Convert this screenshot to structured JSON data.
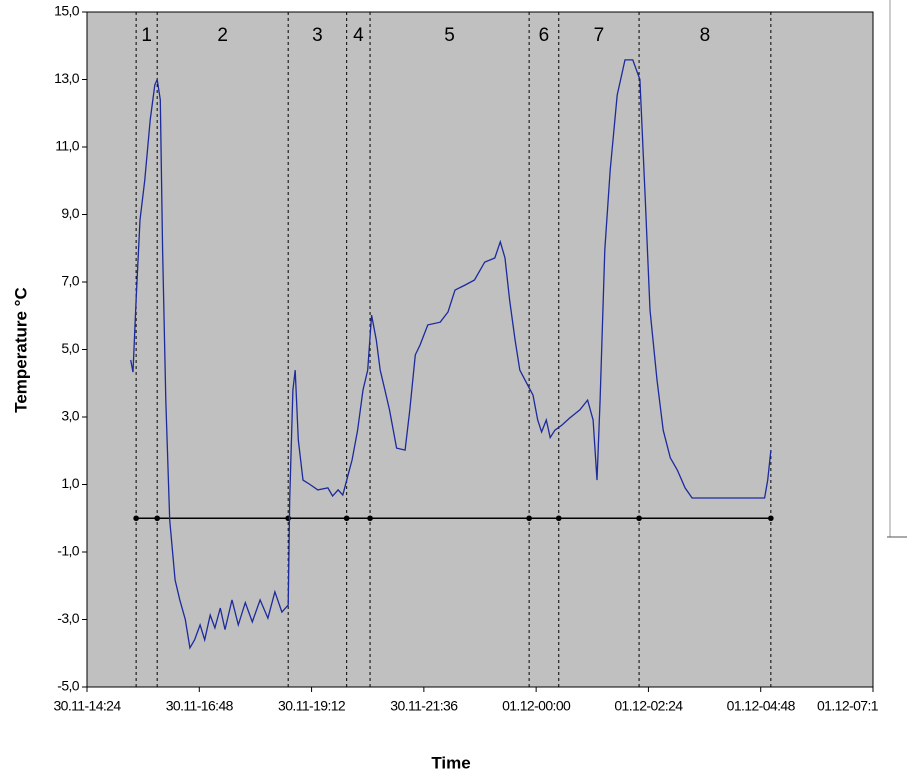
{
  "chart_data": {
    "type": "line",
    "x_label": "Time",
    "y_label": "Temperature °C",
    "xlim": [
      864,
      1872
    ],
    "xticks": [
      {
        "value": 864,
        "label": "30.11-14:24"
      },
      {
        "value": 1008,
        "label": "30.11-16:48"
      },
      {
        "value": 1152,
        "label": "30.11-19:12"
      },
      {
        "value": 1296,
        "label": "30.11-21:36"
      },
      {
        "value": 1440,
        "label": "01.12-00:00"
      },
      {
        "value": 1584,
        "label": "01.12-02:24"
      },
      {
        "value": 1728,
        "label": "01.12-04:48"
      },
      {
        "value": 1872,
        "label": "01.12-07:1"
      }
    ],
    "ylim": [
      -5,
      15
    ],
    "yticks": [
      {
        "value": -5,
        "label": "-5,0"
      },
      {
        "value": -3,
        "label": "-3,0"
      },
      {
        "value": -1,
        "label": "-1,0"
      },
      {
        "value": 1,
        "label": "1,0"
      },
      {
        "value": 3,
        "label": "3,0"
      },
      {
        "value": 5,
        "label": "5,0"
      },
      {
        "value": 7,
        "label": "7,0"
      },
      {
        "value": 9,
        "label": "9,0"
      },
      {
        "value": 11,
        "label": "11,0"
      },
      {
        "value": 13,
        "label": "13,0"
      },
      {
        "value": 15,
        "label": "15,0"
      }
    ],
    "plot_background": "#c0c0c0",
    "reference_line": 0,
    "boundaries": [
      927,
      954,
      1122,
      1197,
      1227,
      1431,
      1469,
      1572,
      1741
    ],
    "segment_labels": [
      "1",
      "2",
      "3",
      "4",
      "5",
      "6",
      "7",
      "8"
    ],
    "x": [
      920,
      923,
      927,
      932,
      938,
      945,
      951,
      954,
      958,
      961,
      965,
      970,
      977,
      983,
      990,
      996,
      1002,
      1009,
      1015,
      1022,
      1028,
      1035,
      1041,
      1050,
      1058,
      1067,
      1076,
      1086,
      1096,
      1105,
      1114,
      1122,
      1124,
      1128,
      1131,
      1135,
      1141,
      1150,
      1160,
      1173,
      1179,
      1186,
      1192,
      1197,
      1204,
      1211,
      1218,
      1224,
      1229,
      1235,
      1240,
      1246,
      1252,
      1261,
      1272,
      1278,
      1285,
      1291,
      1301,
      1317,
      1327,
      1336,
      1349,
      1361,
      1374,
      1387,
      1394,
      1400,
      1406,
      1413,
      1419,
      1429,
      1436,
      1442,
      1447,
      1453,
      1458,
      1464,
      1473,
      1483,
      1496,
      1506,
      1513,
      1518,
      1522,
      1528,
      1535,
      1544,
      1554,
      1564,
      1573,
      1580,
      1586,
      1595,
      1603,
      1612,
      1621,
      1631,
      1640,
      1650,
      1701,
      1733,
      1737,
      1741
    ],
    "series": [
      {
        "color": "#1c2a9c",
        "values": [
          4.69,
          4.33,
          6.47,
          8.84,
          10.0,
          11.8,
          12.84,
          13.0,
          12.4,
          7.95,
          3.5,
          -0.05,
          -1.83,
          -2.42,
          -3.0,
          -3.84,
          -3.6,
          -3.16,
          -3.6,
          -2.87,
          -3.25,
          -2.66,
          -3.3,
          -2.42,
          -3.16,
          -2.5,
          -3.07,
          -2.42,
          -2.96,
          -2.18,
          -2.78,
          -2.57,
          0.54,
          3.8,
          4.39,
          2.32,
          1.13,
          1.0,
          0.84,
          0.9,
          0.66,
          0.84,
          0.69,
          1.13,
          1.73,
          2.61,
          3.8,
          4.39,
          6.02,
          5.28,
          4.39,
          3.8,
          3.21,
          2.08,
          2.02,
          3.21,
          4.84,
          5.13,
          5.73,
          5.81,
          6.11,
          6.76,
          6.91,
          7.06,
          7.59,
          7.71,
          8.19,
          7.71,
          6.47,
          5.28,
          4.39,
          3.95,
          3.65,
          2.91,
          2.56,
          2.91,
          2.39,
          2.61,
          2.76,
          2.97,
          3.21,
          3.5,
          2.91,
          1.13,
          3.5,
          7.95,
          10.32,
          12.54,
          13.58,
          13.58,
          13.0,
          9.43,
          6.17,
          4.1,
          2.61,
          1.79,
          1.43,
          0.9,
          0.6,
          0.6,
          0.6,
          0.6,
          1.13,
          2.02
        ]
      }
    ]
  }
}
